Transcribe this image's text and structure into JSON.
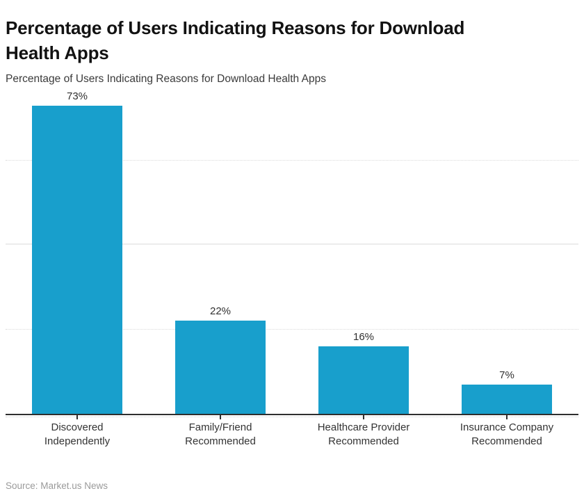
{
  "header": {
    "title_display": "Percentage of Users Indicating Reasons for Download\nHealth Apps",
    "subtitle": "Percentage of Users Indicating Reasons for Download Health Apps"
  },
  "chart_data": {
    "type": "bar",
    "title": "Percentage of Users Indicating Reasons for Download Health Apps",
    "subtitle": "Percentage of Users Indicating Reasons for Download Health Apps",
    "categories": [
      "Discovered Independently",
      "Family/Friend Recommended",
      "Healthcare Provider Recommended",
      "Insurance Company Recommended"
    ],
    "category_lines": [
      [
        "Discovered",
        "Independently"
      ],
      [
        "Family/Friend",
        "Recommended"
      ],
      [
        "Healthcare Provider",
        "Recommended"
      ],
      [
        "Insurance Company",
        "Recommended"
      ]
    ],
    "values": [
      73,
      22,
      16,
      7
    ],
    "value_labels": [
      "73%",
      "22%",
      "16%",
      "7%"
    ],
    "xlabel": "",
    "ylabel": "",
    "ylim": [
      0,
      78.4
    ],
    "grid": true,
    "gridlines": [
      {
        "value": 20,
        "style": "dotted"
      },
      {
        "value": 40,
        "style": "solid"
      },
      {
        "value": 60,
        "style": "dotted"
      }
    ],
    "legend": "none",
    "bar_color": "#189fcc",
    "axis_color": "#2e2e2e",
    "label_color": "#333333"
  },
  "footer": {
    "source": "Source: Market.us News"
  }
}
